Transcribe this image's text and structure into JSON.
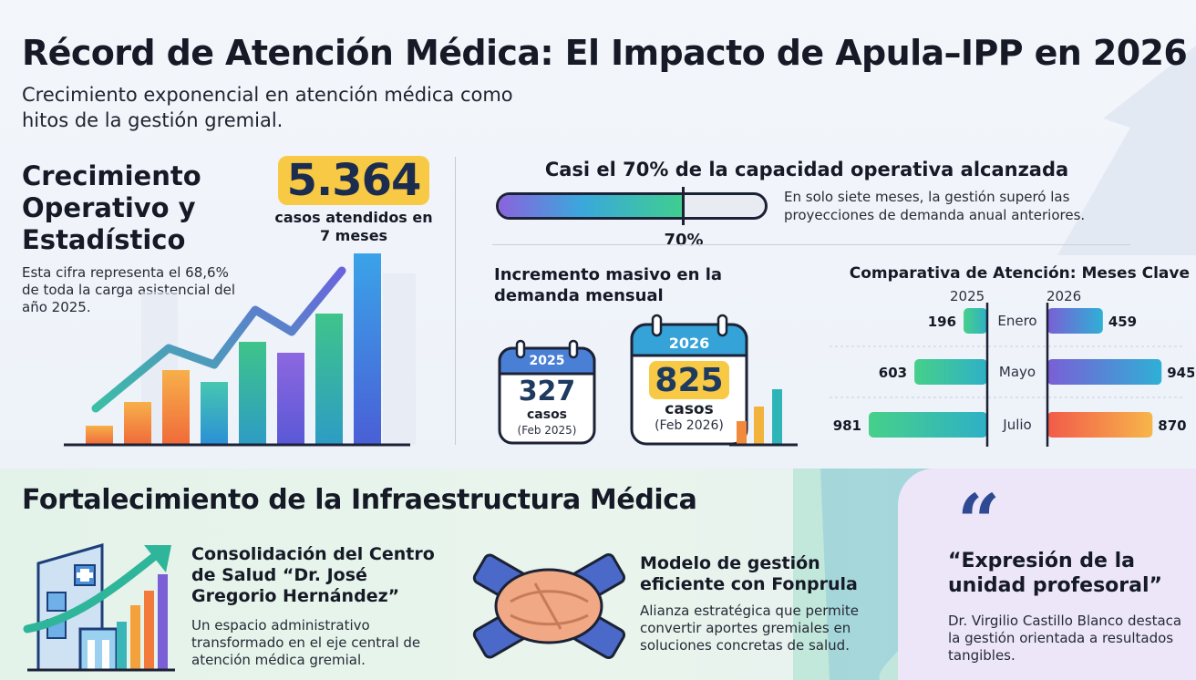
{
  "header": {
    "title": "Récord de Atención Médica: El Impacto de Apula–IPP en 2026",
    "subtitle": "Crecimiento exponencial en atención médica como hitos de la gestión gremial."
  },
  "growth": {
    "title": "Crecimiento Operativo y Estadístico",
    "description": "Esta cifra representa el 68,6% de toda la carga asistencial del año 2025.",
    "big_number": "5.364",
    "big_caption": "casos atendidos en 7 meses"
  },
  "capacity": {
    "title": "Casi el 70% de la capacidad operativa alcanzada",
    "description": "En solo siete meses, la gestión superó las proyecciones de demanda anual anteriores.",
    "percent_label": "70%",
    "fill_fraction": 0.7
  },
  "demand": {
    "title": "Incremento masivo en la demanda mensual",
    "cal_2025": {
      "year": "2025",
      "number": "327",
      "casos": "casos",
      "date": "(Feb 2025)"
    },
    "cal_2026": {
      "year": "2026",
      "number": "825",
      "casos": "casos",
      "date": "(Feb 2026)"
    }
  },
  "chart_data": {
    "type": "bar",
    "title": "Comparativa de Atención: Meses Clave",
    "categories": [
      "Enero",
      "Mayo",
      "Julio"
    ],
    "series": [
      {
        "name": "2025",
        "values": [
          196,
          603,
          981
        ]
      },
      {
        "name": "2026",
        "values": [
          459,
          945,
          870
        ]
      }
    ],
    "xlim": [
      0,
      981
    ]
  },
  "infra": {
    "title": "Fortalecimiento de la Infraestructura Médica",
    "card1": {
      "title": "Consolidación del Centro de Salud “Dr. José Gregorio Hernández”",
      "desc": "Un espacio administrativo transformado en el eje central de atención médica gremial."
    },
    "card2": {
      "title": "Modelo de gestión eficiente con Fonprula",
      "desc": "Alianza estratégica que permite convertir aportes gremiales en soluciones concretas de salud."
    }
  },
  "quote": {
    "mark": "“",
    "text": "“Expresión de la unidad profesoral”",
    "author": "Dr. Virgilio Castillo Blanco destaca la gestión orientada a resultados tangibles."
  },
  "colors": {
    "accent_yellow": "#f7c944",
    "navy": "#1e3a5f",
    "teal": "#3bbfa5",
    "purple": "#7a5fd6",
    "orange": "#f2743b"
  }
}
